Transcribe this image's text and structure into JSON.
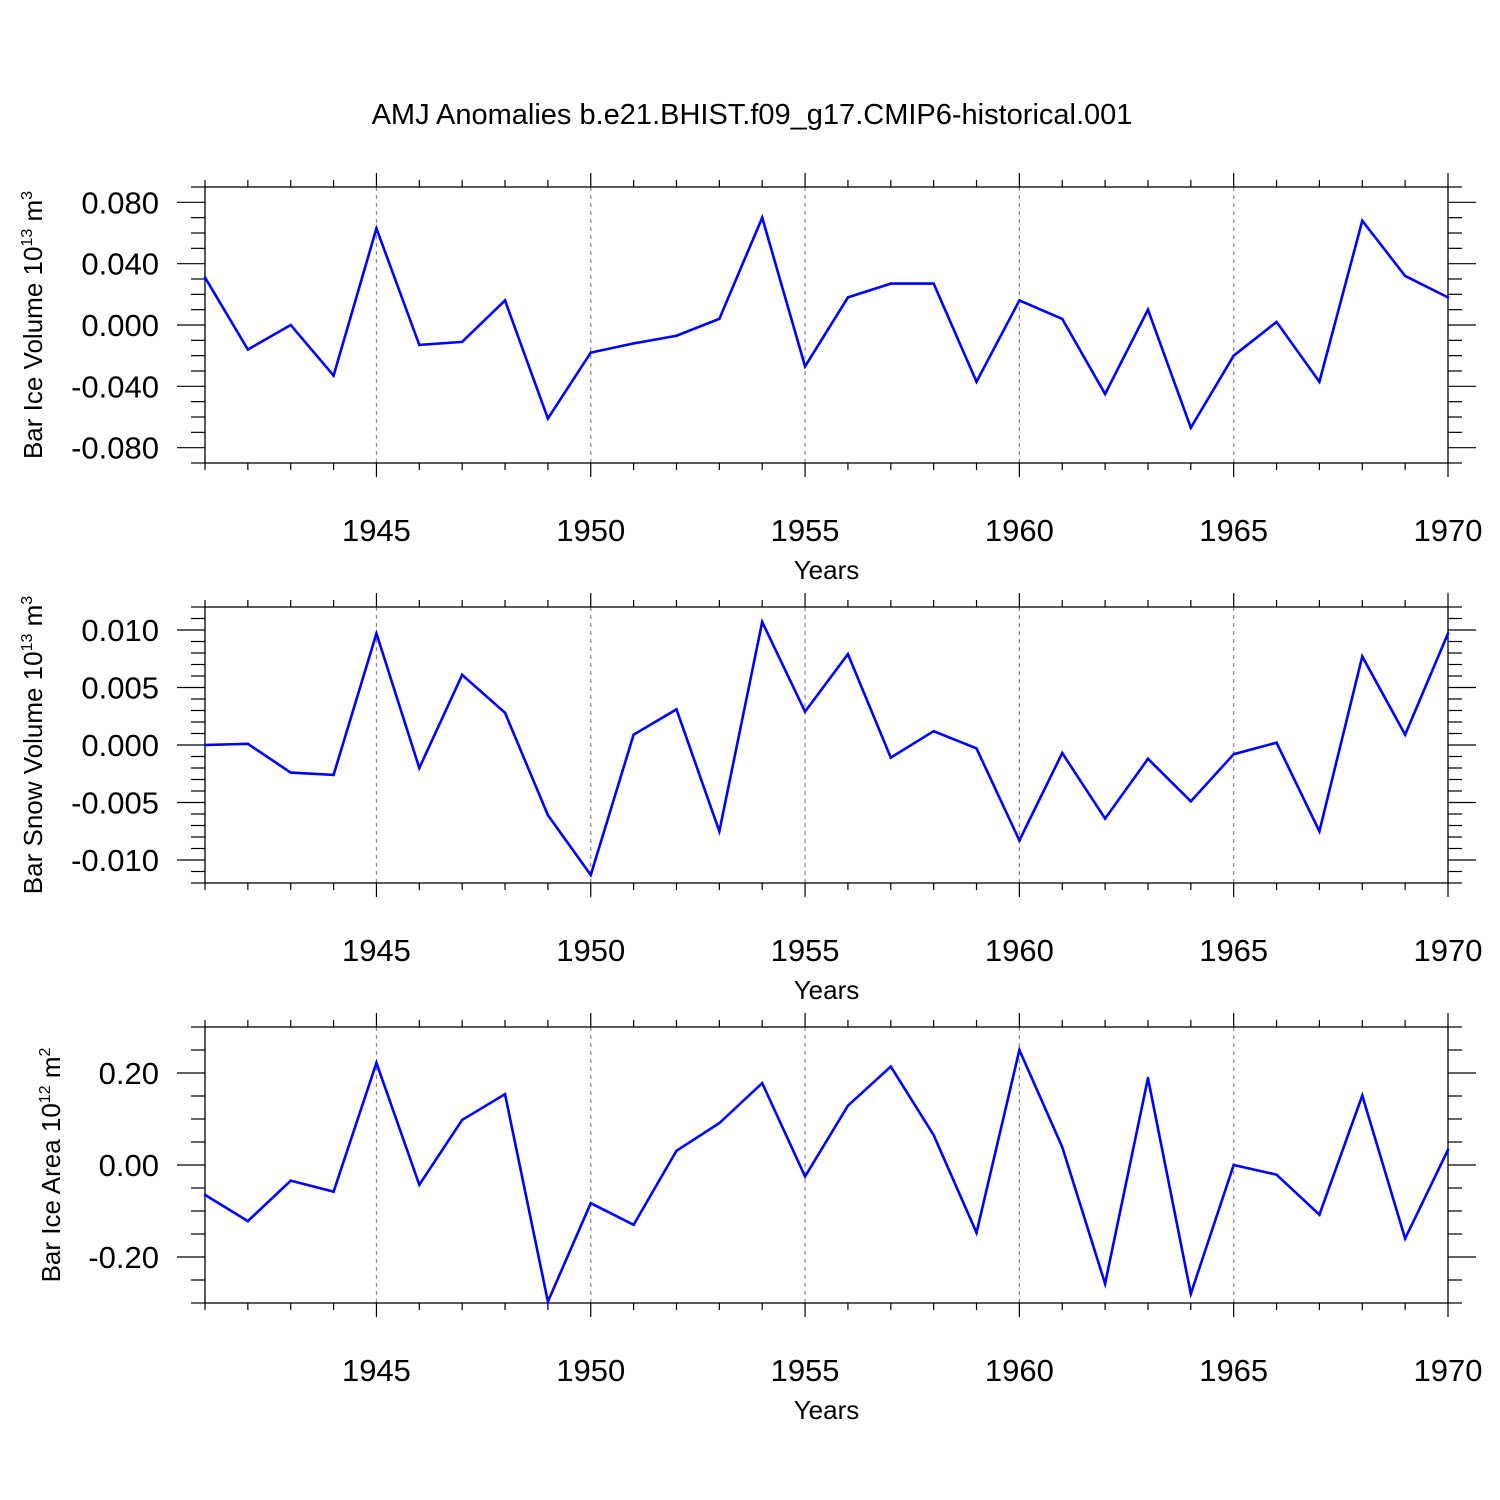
{
  "figure_title": "AMJ Anomalies b.e21.BHIST.f09_g17.CMIP6-historical.001",
  "colors": {
    "line": "#0000ff",
    "axis": "#000000",
    "grid": "#888888"
  },
  "chart_data": [
    {
      "type": "line",
      "title": "AMJ Anomalies b.e21.BHIST.f09_g17.CMIP6-historical.001",
      "ylabel_main": "Bar Ice Volume 10",
      "ylabel_exp": "13",
      "ylabel_unit": "m",
      "ylabel_unit_exp": "3",
      "xlabel": "Years",
      "xlim": [
        1941,
        1970
      ],
      "ylim": [
        -0.09,
        0.09
      ],
      "yticks": [
        -0.08,
        -0.04,
        0.0,
        0.04,
        0.08
      ],
      "ytick_labels": [
        "-0.080",
        "-0.040",
        "0.000",
        "0.040",
        "0.080"
      ],
      "yminor_step": 0.01,
      "xticks": [
        1945,
        1950,
        1955,
        1960,
        1965,
        1970
      ],
      "xtick_labels": [
        "1945",
        "1950",
        "1955",
        "1960",
        "1965",
        "1970"
      ],
      "grid": "vertical dashed at major x ticks",
      "series": [
        {
          "name": "Bar Ice Volume",
          "x": [
            1941,
            1942,
            1943,
            1944,
            1945,
            1946,
            1947,
            1948,
            1949,
            1950,
            1951,
            1952,
            1953,
            1954,
            1955,
            1956,
            1957,
            1958,
            1959,
            1960,
            1961,
            1962,
            1963,
            1964,
            1965,
            1966,
            1967,
            1968,
            1969,
            1970
          ],
          "values": [
            0.031,
            -0.016,
            0.0,
            -0.033,
            0.063,
            -0.013,
            -0.011,
            0.016,
            -0.061,
            -0.018,
            -0.012,
            -0.007,
            0.004,
            0.07,
            -0.027,
            0.018,
            0.027,
            0.027,
            -0.037,
            0.016,
            0.004,
            -0.045,
            0.01,
            -0.067,
            -0.02,
            0.002,
            -0.037,
            0.068,
            0.032,
            0.018
          ]
        }
      ]
    },
    {
      "type": "line",
      "ylabel_main": "Bar Snow Volume 10",
      "ylabel_exp": "13",
      "ylabel_unit": "m",
      "ylabel_unit_exp": "3",
      "xlabel": "Years",
      "xlim": [
        1941,
        1970
      ],
      "ylim": [
        -0.012,
        0.012
      ],
      "yticks": [
        -0.01,
        -0.005,
        0.0,
        0.005,
        0.01
      ],
      "ytick_labels": [
        "-0.010",
        "-0.005",
        "0.000",
        "0.005",
        "0.010"
      ],
      "yminor_step": 0.001,
      "xticks": [
        1945,
        1950,
        1955,
        1960,
        1965,
        1970
      ],
      "xtick_labels": [
        "1945",
        "1950",
        "1955",
        "1960",
        "1965",
        "1970"
      ],
      "grid": "vertical dashed at major x ticks",
      "series": [
        {
          "name": "Bar Snow Volume",
          "x": [
            1941,
            1942,
            1943,
            1944,
            1945,
            1946,
            1947,
            1948,
            1949,
            1950,
            1951,
            1952,
            1953,
            1954,
            1955,
            1956,
            1957,
            1958,
            1959,
            1960,
            1961,
            1962,
            1963,
            1964,
            1965,
            1966,
            1967,
            1968,
            1969,
            1970
          ],
          "values": [
            0.0,
            0.0001,
            -0.0024,
            -0.0026,
            0.0097,
            -0.002,
            0.0061,
            0.0028,
            -0.0061,
            -0.0113,
            0.0009,
            0.0031,
            -0.0075,
            0.0107,
            0.0029,
            0.0079,
            -0.0011,
            0.0012,
            -0.0003,
            -0.0083,
            -0.0007,
            -0.0064,
            -0.0012,
            -0.0049,
            -0.0008,
            0.0002,
            -0.0075,
            0.0077,
            0.0009,
            0.0097
          ]
        }
      ]
    },
    {
      "type": "line",
      "ylabel_main": "Bar Ice Area 10",
      "ylabel_exp": "12",
      "ylabel_unit": "m",
      "ylabel_unit_exp": "2",
      "xlabel": "Years",
      "xlim": [
        1941,
        1970
      ],
      "ylim": [
        -0.3,
        0.3
      ],
      "yticks": [
        -0.2,
        0.0,
        0.2
      ],
      "ytick_labels": [
        "-0.20",
        "0.00",
        "0.20"
      ],
      "yminor_step": 0.05,
      "xticks": [
        1945,
        1950,
        1955,
        1960,
        1965,
        1970
      ],
      "xtick_labels": [
        "1945",
        "1950",
        "1955",
        "1960",
        "1965",
        "1970"
      ],
      "grid": "vertical dashed at major x ticks",
      "series": [
        {
          "name": "Bar Ice Area",
          "x": [
            1941,
            1942,
            1943,
            1944,
            1945,
            1946,
            1947,
            1948,
            1949,
            1950,
            1951,
            1952,
            1953,
            1954,
            1955,
            1956,
            1957,
            1958,
            1959,
            1960,
            1961,
            1962,
            1963,
            1964,
            1965,
            1966,
            1967,
            1968,
            1969,
            1970
          ],
          "values": [
            -0.065,
            -0.122,
            -0.034,
            -0.058,
            0.222,
            -0.043,
            0.098,
            0.154,
            -0.297,
            -0.083,
            -0.13,
            0.031,
            0.091,
            0.178,
            -0.025,
            0.129,
            0.214,
            0.065,
            -0.147,
            0.25,
            0.039,
            -0.258,
            0.189,
            -0.28,
            0.0,
            -0.021,
            -0.108,
            0.151,
            -0.16,
            0.033
          ]
        }
      ]
    }
  ]
}
